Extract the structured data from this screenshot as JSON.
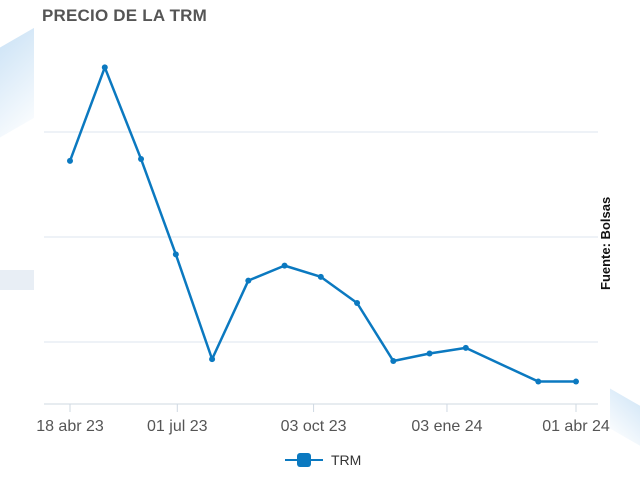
{
  "chart_data": {
    "type": "line",
    "title": "PRECIO DE LA TRM",
    "source_note": "Fuente: Bolsas",
    "x_tick_labels": [
      "18 abr 23",
      "01 jul 23",
      "03 oct 23",
      "03 ene 24",
      "01 abr 24"
    ],
    "x_tick_dates": [
      "2023-04-18",
      "2023-07-01",
      "2023-10-03",
      "2024-01-03",
      "2024-04-01"
    ],
    "series": [
      {
        "name": "TRM",
        "color": "#0b79c0",
        "x": [
          "2023-04-18",
          "2023-05-12",
          "2023-06-06",
          "2023-06-30",
          "2023-07-25",
          "2023-08-19",
          "2023-09-13",
          "2023-10-08",
          "2023-11-02",
          "2023-11-27",
          "2023-12-22",
          "2024-01-16",
          "2024-03-06",
          "2024-04-01"
        ],
        "values": [
          4550,
          4800,
          4555,
          4300,
          4020,
          4230,
          4270,
          4240,
          4170,
          4015,
          4035,
          4050,
          3960,
          3960
        ]
      }
    ],
    "ylim": [
      3900,
      4900
    ],
    "grid": true,
    "legend": "bottom"
  },
  "legend": {
    "label": "TRM"
  }
}
